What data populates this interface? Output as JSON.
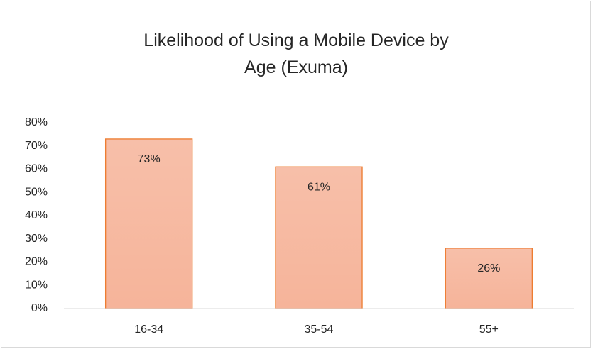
{
  "chart_data": {
    "type": "bar",
    "title": "Likelihood of Using a Mobile Device by Age (Exuma)",
    "categories": [
      "16-34",
      "35-54",
      "55+"
    ],
    "values": [
      73,
      61,
      26
    ],
    "value_labels": [
      "73%",
      "61%",
      "26%"
    ],
    "color": "#f6b49a",
    "edge_color": "#ed7d31",
    "ylim": [
      0,
      80
    ],
    "yticks": [
      {
        "value": 0,
        "label": "0%"
      },
      {
        "value": 10,
        "label": "10%"
      },
      {
        "value": 20,
        "label": "20%"
      },
      {
        "value": 30,
        "label": "30%"
      },
      {
        "value": 40,
        "label": "40%"
      },
      {
        "value": 50,
        "label": "50%"
      },
      {
        "value": 60,
        "label": "60%"
      },
      {
        "value": 70,
        "label": "70%"
      },
      {
        "value": 80,
        "label": "80%"
      }
    ],
    "grid": false
  }
}
